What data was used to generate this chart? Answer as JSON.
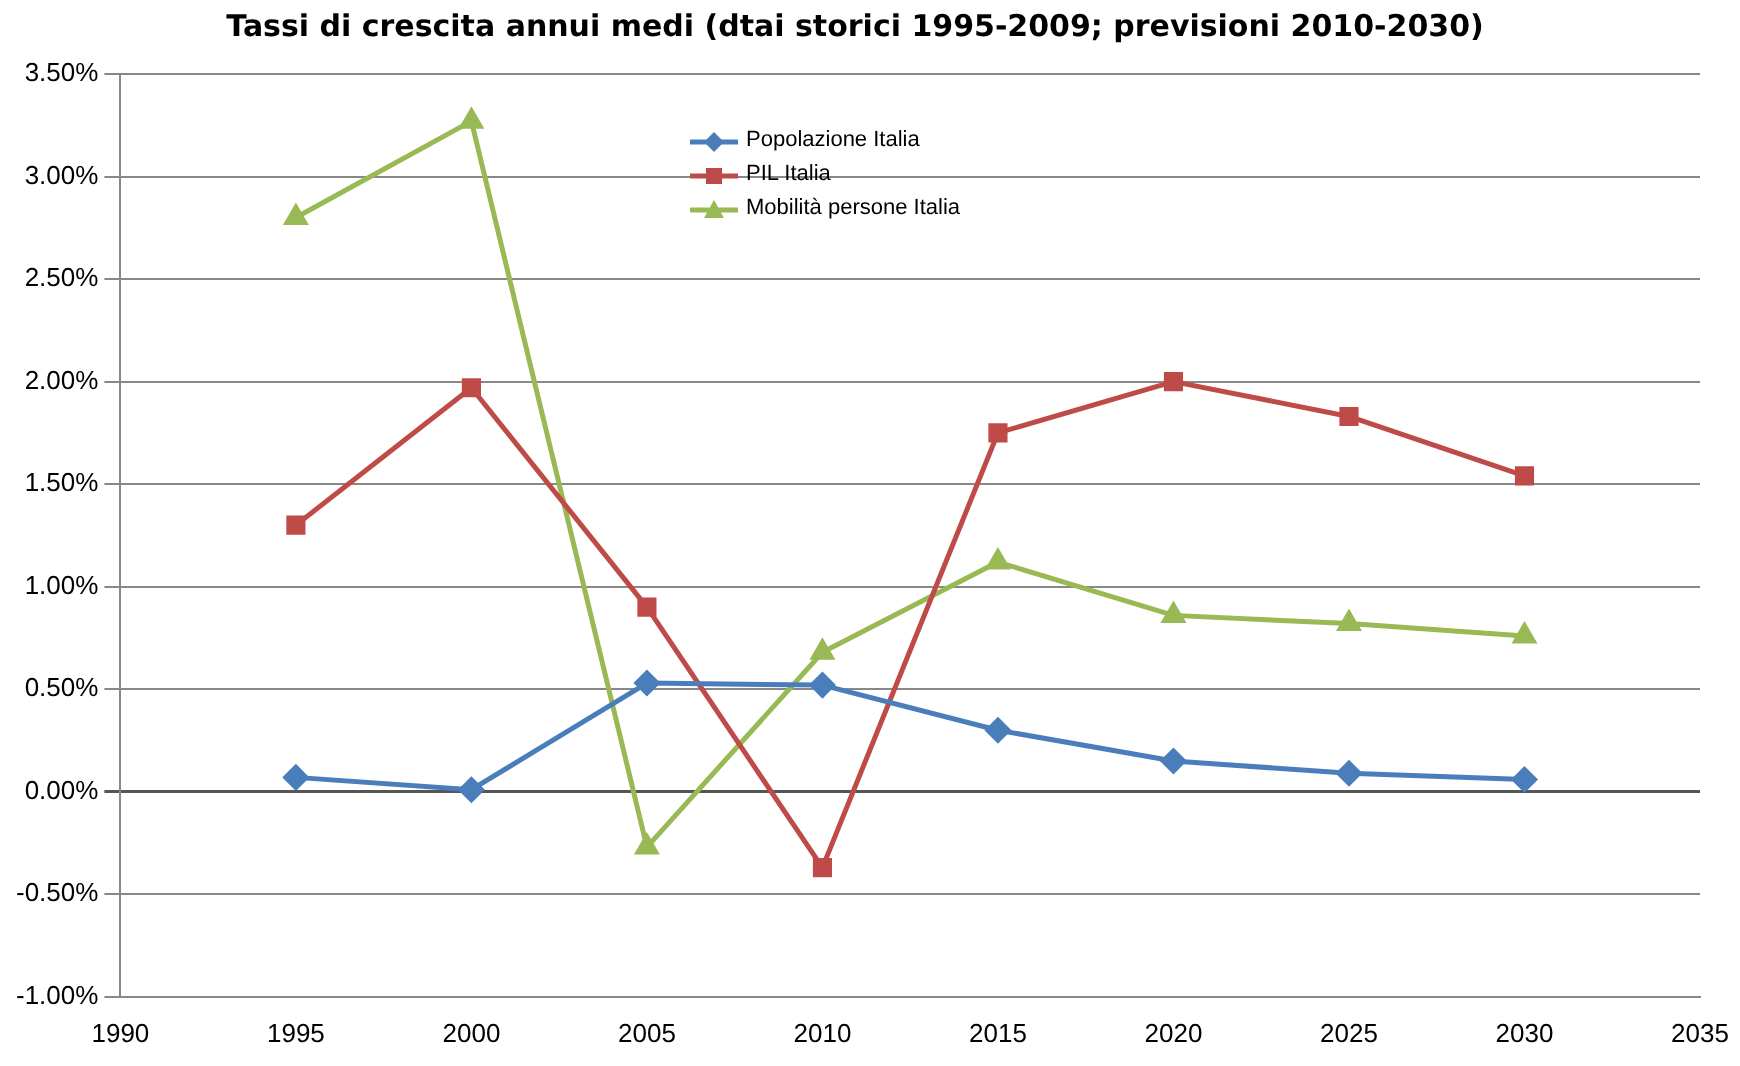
{
  "chart_data": {
    "type": "line",
    "title": "Tassi di crescita annui medi (dtai storici 1995-2009; previsioni 2010-2030)",
    "x": [
      1995,
      2000,
      2005,
      2010,
      2015,
      2020,
      2025,
      2030
    ],
    "series": [
      {
        "name": "Popolazione Italia",
        "color": "#4a7ebb",
        "marker": "diamond",
        "values": [
          0.07,
          0.01,
          0.53,
          0.52,
          0.3,
          0.15,
          0.09,
          0.06
        ]
      },
      {
        "name": "PIL Italia",
        "color": "#be4b48",
        "marker": "square",
        "values": [
          1.3,
          1.97,
          0.9,
          -0.37,
          1.75,
          2.0,
          1.83,
          1.54
        ]
      },
      {
        "name": "Mobilità persone Italia",
        "color": "#98b954",
        "marker": "triangle",
        "values": [
          2.8,
          3.27,
          -0.27,
          0.68,
          1.12,
          0.86,
          0.82,
          0.76
        ]
      }
    ],
    "xlim": [
      1990,
      2035
    ],
    "xticks": [
      1990,
      1995,
      2000,
      2005,
      2010,
      2015,
      2020,
      2025,
      2030,
      2035
    ],
    "ylim": [
      -1,
      3.5
    ],
    "yticks": [
      {
        "value": -1,
        "label": "-1.00%"
      },
      {
        "value": -0.5,
        "label": "-0.50%"
      },
      {
        "value": 0,
        "label": "0.00%"
      },
      {
        "value": 0.5,
        "label": "0.50%"
      },
      {
        "value": 1,
        "label": "1.00%"
      },
      {
        "value": 1.5,
        "label": "1.50%"
      },
      {
        "value": 2,
        "label": "2.00%"
      },
      {
        "value": 2.5,
        "label": "2.50%"
      },
      {
        "value": 3,
        "label": "3.00%"
      },
      {
        "value": 3.5,
        "label": "3.50%"
      }
    ],
    "grid": "y",
    "legend": "top"
  }
}
